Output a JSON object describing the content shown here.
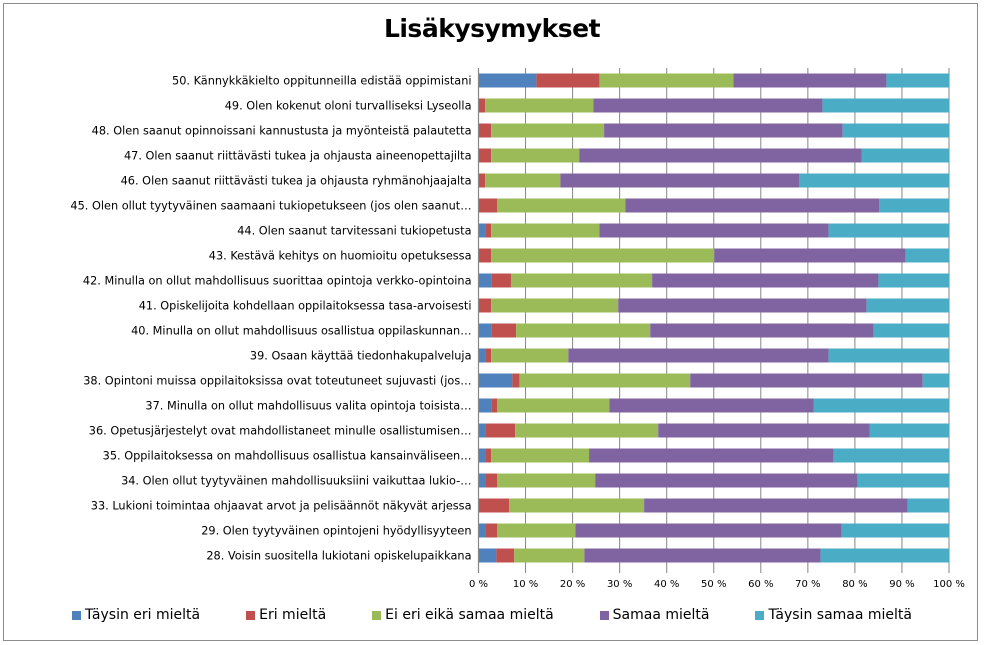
{
  "chart_data": {
    "type": "bar",
    "orientation": "horizontal",
    "stacked": "percent",
    "title": "Lisäkysymykset",
    "xlabel": "",
    "ylabel": "",
    "xlim": [
      0,
      100
    ],
    "grid": true,
    "legend_position": "bottom",
    "x_ticks": [
      "0 %",
      "10 %",
      "20 %",
      "30 %",
      "40 %",
      "50 %",
      "60 %",
      "70 %",
      "80 %",
      "90 %",
      "100 %"
    ],
    "categories": [
      "50. Kännykkäkielto oppitunneilla edistää oppimistani",
      "49. Olen kokenut oloni turvalliseksi Lyseolla",
      "48. Olen saanut opinnoissani kannustusta ja myönteistä palautetta",
      "47. Olen saanut riittävästi tukea ja ohjausta aineenopettajilta",
      "46. Olen saanut riittävästi tukea ja ohjausta ryhmänohjaajalta",
      "45. Olen ollut tyytyväinen saamaani tukiopetukseen (jos olen saanut…",
      "44. Olen saanut tarvitessani tukiopetusta",
      "43. Kestävä kehitys on huomioitu opetuksessa",
      "42. Minulla on ollut mahdollisuus suorittaa opintoja verkko-opintoina",
      "41. Opiskelijoita kohdellaan oppilaitoksessa tasa-arvoisesti",
      "40. Minulla on ollut mahdollisuus osallistua oppilaskunnan…",
      "39. Osaan käyttää tiedonhakupalveluja",
      "38. Opintoni muissa oppilaitoksissa ovat toteutuneet sujuvasti (jos…",
      "37. Minulla on ollut mahdollisuus valita opintoja toisista…",
      "36. Opetusjärjestelyt ovat mahdollistaneet minulle osallistumisen…",
      "35. Oppilaitoksessa on mahdollisuus osallistua kansainväliseen…",
      "34. Olen ollut tyytyväinen mahdollisuuksiini vaikuttaa lukio-…",
      "33. Lukioni toimintaa ohjaavat arvot ja pelisäännöt näkyvät arjessa",
      "29. Olen tyytyväinen opintojeni hyödyllisyyteen",
      "28. Voisin suositella lukiotani opiskelupaikkana"
    ],
    "series": [
      {
        "name": "Täysin eri mieltä",
        "color": "#4f81bd",
        "values": [
          12.3,
          0,
          0,
          0,
          0,
          0,
          1.4,
          0,
          2.7,
          0,
          2.7,
          1.4,
          7.2,
          2.7,
          1.4,
          1.4,
          1.4,
          0,
          1.4,
          3.8
        ]
      },
      {
        "name": "Eri mieltä",
        "color": "#c0504d",
        "values": [
          13.4,
          1.4,
          2.7,
          2.7,
          1.4,
          4.0,
          1.3,
          2.7,
          4.2,
          2.7,
          5.3,
          1.3,
          1.5,
          1.3,
          6.4,
          1.3,
          2.6,
          6.5,
          2.6,
          3.8
        ]
      },
      {
        "name": "Ei eri eikä samaa mieltä",
        "color": "#9bbb59",
        "values": [
          28.5,
          23.0,
          24.0,
          18.7,
          16.0,
          27.2,
          23.0,
          47.4,
          30.0,
          27.0,
          28.5,
          16.4,
          36.3,
          23.8,
          30.4,
          20.8,
          20.8,
          28.7,
          16.6,
          14.9
        ]
      },
      {
        "name": "Samaa mieltä",
        "color": "#8064a2",
        "values": [
          32.5,
          48.7,
          50.7,
          60.0,
          50.8,
          54.0,
          48.7,
          40.7,
          48.1,
          52.8,
          47.5,
          55.3,
          49.4,
          43.4,
          44.9,
          52.0,
          55.8,
          56.0,
          56.6,
          50.2
        ]
      },
      {
        "name": "Täysin samaa mieltä",
        "color": "#4bacc6",
        "values": [
          13.3,
          26.9,
          22.6,
          18.6,
          31.8,
          14.8,
          25.6,
          9.2,
          15.0,
          17.5,
          16.0,
          25.6,
          5.6,
          28.8,
          16.9,
          24.5,
          19.4,
          8.8,
          22.8,
          27.3
        ]
      }
    ]
  }
}
